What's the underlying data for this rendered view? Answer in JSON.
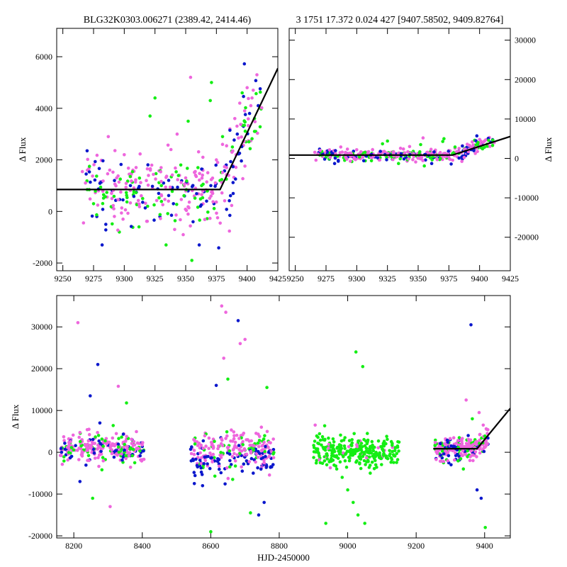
{
  "colors": {
    "magenta": "#EE66DD",
    "blue": "#0A17CC",
    "green": "#14EE14",
    "model": "#000000"
  },
  "chart_data": [
    {
      "id": "top-left",
      "type": "scatter",
      "title": "BLG32K0303.006271 (2389.42, 2414.46)",
      "ylabel": "Δ Flux",
      "xlabel": "",
      "xlim": [
        9245,
        9425
      ],
      "ylim": [
        -2300,
        7100
      ],
      "xticks": [
        9250,
        9275,
        9300,
        9325,
        9350,
        9375,
        9400,
        9425
      ],
      "yticks": [
        -2000,
        0,
        2000,
        4000,
        6000
      ],
      "yaxis_side": "left",
      "model": [
        [
          9245,
          850
        ],
        [
          9378,
          850
        ],
        [
          9425,
          5550
        ]
      ],
      "grid": false
    },
    {
      "id": "top-right",
      "type": "scatter",
      "title": "3 1751 17.372 0.024 427 [9407.58502, 9409.82764]",
      "ylabel": "Δ Flux",
      "xlabel": "",
      "xlim": [
        9245,
        9425
      ],
      "ylim": [
        -28500,
        33000
      ],
      "xticks": [
        9250,
        9275,
        9300,
        9325,
        9350,
        9375,
        9400,
        9425
      ],
      "yticks": [
        -20000,
        -10000,
        0,
        10000,
        20000,
        30000
      ],
      "yaxis_side": "right",
      "model": [
        [
          9245,
          850
        ],
        [
          9378,
          850
        ],
        [
          9425,
          5550
        ]
      ],
      "grid": false
    },
    {
      "id": "bottom",
      "type": "scatter",
      "title": "",
      "ylabel": "Δ Flux",
      "xlabel": "HJD-2450000",
      "xlim": [
        8150,
        9475
      ],
      "ylim": [
        -20500,
        37500
      ],
      "xticks": [
        8200,
        8400,
        8600,
        8800,
        9000,
        9200,
        9400
      ],
      "yticks": [
        -20000,
        -10000,
        0,
        10000,
        20000,
        30000
      ],
      "yaxis_side": "left",
      "model": [
        [
          9250,
          850
        ],
        [
          9378,
          850
        ],
        [
          9475,
          10500
        ]
      ],
      "grid": false
    }
  ],
  "data_points": {
    "season1": [
      [
        9270,
        1600,
        "m"
      ],
      [
        9275,
        300,
        "g"
      ],
      [
        9282,
        -1300,
        "b"
      ],
      [
        9287,
        2900,
        "m"
      ],
      [
        9290,
        500,
        "m"
      ],
      [
        9296,
        -800,
        "g"
      ],
      [
        9300,
        2200,
        "m"
      ],
      [
        9305,
        1000,
        "b"
      ],
      [
        9310,
        300,
        "m"
      ],
      [
        9312,
        -600,
        "g"
      ],
      [
        9318,
        1200,
        "m"
      ],
      [
        9321,
        3700,
        "g"
      ],
      [
        9325,
        4400,
        "g"
      ],
      [
        9328,
        700,
        "b"
      ],
      [
        9330,
        1700,
        "m"
      ],
      [
        9334,
        -1300,
        "g"
      ],
      [
        9338,
        2400,
        "m"
      ],
      [
        9340,
        300,
        "b"
      ],
      [
        9343,
        3000,
        "m"
      ],
      [
        9346,
        1800,
        "g"
      ],
      [
        9349,
        600,
        "b"
      ],
      [
        9350,
        1300,
        "m"
      ],
      [
        9352,
        3500,
        "g"
      ],
      [
        9354,
        5200,
        "m"
      ],
      [
        9356,
        -400,
        "b"
      ],
      [
        9358,
        900,
        "m"
      ],
      [
        9360,
        1700,
        "g"
      ],
      [
        9362,
        200,
        "b"
      ],
      [
        9364,
        2100,
        "m"
      ],
      [
        9366,
        800,
        "g"
      ],
      [
        9368,
        1500,
        "m"
      ],
      [
        9370,
        4300,
        "g"
      ],
      [
        9371,
        5000,
        "g"
      ],
      [
        9373,
        300,
        "b"
      ],
      [
        9375,
        2000,
        "m"
      ],
      [
        9378,
        1200,
        "g"
      ],
      [
        9380,
        2600,
        "m"
      ],
      [
        9383,
        1800,
        "b"
      ],
      [
        9386,
        3200,
        "m"
      ],
      [
        9388,
        2500,
        "g"
      ],
      [
        9390,
        3600,
        "m"
      ],
      [
        9392,
        3000,
        "b"
      ],
      [
        9394,
        4200,
        "m"
      ],
      [
        9396,
        4600,
        "g"
      ],
      [
        9398,
        3900,
        "m"
      ],
      [
        9400,
        4800,
        "m"
      ],
      [
        9402,
        3800,
        "b"
      ],
      [
        9404,
        4400,
        "m"
      ],
      [
        9406,
        3600,
        "g"
      ],
      [
        9408,
        5300,
        "m"
      ],
      [
        9409,
        4100,
        "b"
      ],
      [
        9380,
        2900,
        "g"
      ],
      [
        9385,
        1400,
        "m"
      ],
      [
        9391,
        2200,
        "m"
      ],
      [
        9397,
        3300,
        "b"
      ],
      [
        9399,
        2700,
        "g"
      ],
      [
        9403,
        4100,
        "m"
      ],
      [
        9405,
        4700,
        "m"
      ],
      [
        9407,
        3100,
        "g"
      ],
      [
        9376,
        1900,
        "m"
      ],
      [
        9279,
        800,
        "m"
      ],
      [
        9292,
        1200,
        "b"
      ],
      [
        9307,
        1600,
        "m"
      ],
      [
        9315,
        500,
        "g"
      ],
      [
        9323,
        900,
        "m"
      ],
      [
        9332,
        1100,
        "b"
      ],
      [
        9336,
        400,
        "m"
      ],
      [
        9345,
        1400,
        "m"
      ],
      [
        9357,
        600,
        "m"
      ],
      [
        9363,
        1000,
        "g"
      ],
      [
        9367,
        400,
        "b"
      ],
      [
        9372,
        700,
        "m"
      ],
      [
        9355,
        -1900,
        "g"
      ],
      [
        9361,
        -1300,
        "b"
      ],
      [
        9348,
        -900,
        "m"
      ],
      [
        9285,
        -500,
        "b"
      ],
      [
        9299,
        -300,
        "m"
      ],
      [
        9319,
        200,
        "g"
      ],
      [
        9329,
        -200,
        "b"
      ],
      [
        9341,
        -700,
        "m"
      ]
    ],
    "season_early": [
      [
        8165,
        1200,
        "m"
      ],
      [
        8172,
        2800,
        "m"
      ],
      [
        8180,
        500,
        "b"
      ],
      [
        8190,
        -200,
        "g"
      ],
      [
        8198,
        4100,
        "m"
      ],
      [
        8205,
        1600,
        "b"
      ],
      [
        8212,
        31000,
        "m"
      ],
      [
        8218,
        -7000,
        "b"
      ],
      [
        8224,
        3000,
        "m"
      ],
      [
        8232,
        500,
        "g"
      ],
      [
        8240,
        1900,
        "m"
      ],
      [
        8248,
        13500,
        "b"
      ],
      [
        8255,
        -11000,
        "g"
      ],
      [
        8262,
        3400,
        "m"
      ],
      [
        8270,
        21000,
        "b"
      ],
      [
        8276,
        7000,
        "b"
      ],
      [
        8282,
        -4200,
        "g"
      ],
      [
        8290,
        2700,
        "m"
      ],
      [
        8298,
        1600,
        "m"
      ],
      [
        8306,
        -13000,
        "m"
      ],
      [
        8315,
        6400,
        "g"
      ],
      [
        8322,
        1800,
        "m"
      ],
      [
        8330,
        15800,
        "m"
      ],
      [
        8338,
        900,
        "b"
      ],
      [
        8346,
        4400,
        "m"
      ],
      [
        8354,
        11800,
        "g"
      ],
      [
        8362,
        1100,
        "m"
      ],
      [
        8370,
        3000,
        "b"
      ],
      [
        8378,
        -2500,
        "g"
      ],
      [
        8386,
        2200,
        "m"
      ],
      [
        8394,
        500,
        "m"
      ],
      [
        8400,
        1400,
        "b"
      ]
    ],
    "season_mid": [
      [
        8545,
        1000,
        "m"
      ],
      [
        8552,
        -7500,
        "b"
      ],
      [
        8560,
        2500,
        "m"
      ],
      [
        8568,
        -3200,
        "b"
      ],
      [
        8576,
        -8000,
        "b"
      ],
      [
        8584,
        4600,
        "m"
      ],
      [
        8592,
        -1000,
        "b"
      ],
      [
        8600,
        -19000,
        "g"
      ],
      [
        8608,
        1200,
        "m"
      ],
      [
        8616,
        16000,
        "b"
      ],
      [
        8624,
        -2800,
        "b"
      ],
      [
        8632,
        35000,
        "m"
      ],
      [
        8638,
        22500,
        "m"
      ],
      [
        8644,
        33500,
        "m"
      ],
      [
        8650,
        17500,
        "g"
      ],
      [
        8656,
        -2000,
        "b"
      ],
      [
        8664,
        -6500,
        "g"
      ],
      [
        8672,
        2400,
        "m"
      ],
      [
        8680,
        31500,
        "b"
      ],
      [
        8686,
        26000,
        "m"
      ],
      [
        8692,
        -4500,
        "b"
      ],
      [
        8700,
        27000,
        "m"
      ],
      [
        8708,
        3000,
        "m"
      ],
      [
        8716,
        -14500,
        "g"
      ],
      [
        8724,
        -5000,
        "b"
      ],
      [
        8732,
        1800,
        "m"
      ],
      [
        8740,
        -15000,
        "b"
      ],
      [
        8748,
        6000,
        "m"
      ],
      [
        8756,
        -12000,
        "b"
      ],
      [
        8764,
        15500,
        "g"
      ],
      [
        8772,
        500,
        "m"
      ],
      [
        8778,
        -3500,
        "b"
      ]
    ],
    "season_green": [
      [
        8905,
        6500,
        "m"
      ],
      [
        8912,
        800,
        "g"
      ],
      [
        8920,
        -2500,
        "g"
      ],
      [
        8928,
        3000,
        "g"
      ],
      [
        8936,
        -17000,
        "g"
      ],
      [
        8944,
        1200,
        "g"
      ],
      [
        8952,
        -1500,
        "g"
      ],
      [
        8960,
        2500,
        "g"
      ],
      [
        8968,
        -4000,
        "g"
      ],
      [
        8976,
        1800,
        "g"
      ],
      [
        8984,
        -6000,
        "g"
      ],
      [
        8992,
        3500,
        "g"
      ],
      [
        9000,
        -9000,
        "g"
      ],
      [
        9008,
        500,
        "g"
      ],
      [
        9016,
        -12000,
        "g"
      ],
      [
        9024,
        24000,
        "g"
      ],
      [
        9030,
        -15000,
        "g"
      ],
      [
        9036,
        1500,
        "g"
      ],
      [
        9044,
        20500,
        "g"
      ],
      [
        9050,
        -17000,
        "g"
      ],
      [
        9058,
        2500,
        "g"
      ],
      [
        9066,
        -5000,
        "g"
      ],
      [
        9074,
        1000,
        "g"
      ],
      [
        9082,
        -3000,
        "g"
      ],
      [
        9090,
        2700,
        "g"
      ],
      [
        9098,
        -1500,
        "g"
      ],
      [
        9106,
        1500,
        "g"
      ],
      [
        9114,
        3800,
        "g"
      ],
      [
        9122,
        -800,
        "g"
      ],
      [
        9130,
        2100,
        "g"
      ],
      [
        9138,
        400,
        "g"
      ],
      [
        9146,
        1200,
        "g"
      ]
    ],
    "season_late": [
      [
        9258,
        -1500,
        "b"
      ],
      [
        9268,
        1500,
        "m"
      ],
      [
        9280,
        -2500,
        "g"
      ],
      [
        9292,
        2000,
        "m"
      ],
      [
        9302,
        -3000,
        "b"
      ],
      [
        9314,
        1000,
        "m"
      ],
      [
        9326,
        3500,
        "g"
      ],
      [
        9338,
        -4000,
        "g"
      ],
      [
        9346,
        12500,
        "m"
      ],
      [
        9352,
        4000,
        "b"
      ],
      [
        9360,
        30500,
        "b"
      ],
      [
        9366,
        -2000,
        "m"
      ],
      [
        9372,
        3000,
        "g"
      ],
      [
        9378,
        -9000,
        "b"
      ],
      [
        9384,
        9500,
        "m"
      ],
      [
        9390,
        -11000,
        "b"
      ],
      [
        9396,
        6500,
        "m"
      ],
      [
        9402,
        -18000,
        "g"
      ],
      [
        9408,
        4500,
        "m"
      ],
      [
        9364,
        8000,
        "g"
      ]
    ]
  },
  "bands": {
    "season_early": {
      "x0": 8160,
      "x1": 8405,
      "magenta_spread": 2500,
      "blue_mean": 500
    },
    "season_mid": {
      "x0": 8540,
      "x1": 8785,
      "magenta_spread": 3000,
      "blue_mean": -1500
    },
    "season_green": {
      "x0": 8900,
      "x1": 9150,
      "green_spread": 3000
    },
    "season_late": {
      "x0": 9255,
      "x1": 9410,
      "magenta_spread": 1800
    }
  }
}
